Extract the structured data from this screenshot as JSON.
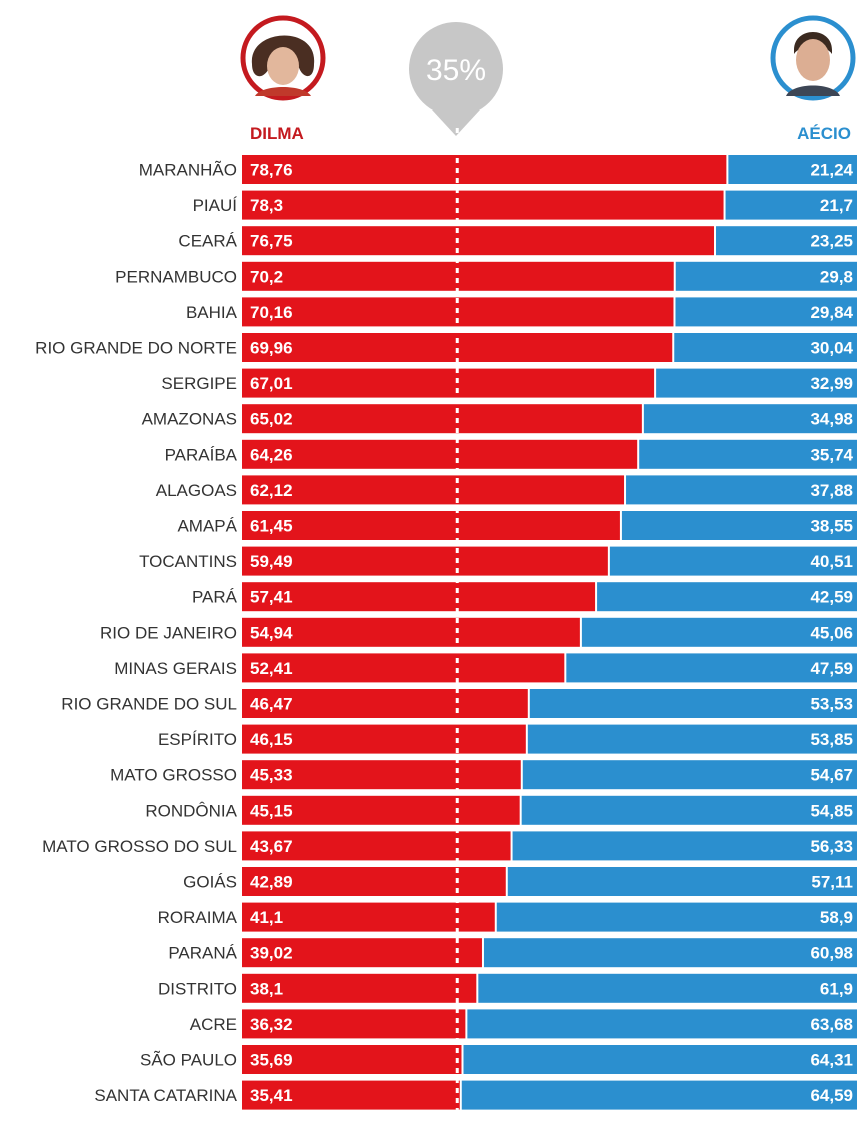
{
  "colors": {
    "dilma": "#e3141b",
    "aecio": "#2b8fcf",
    "marker": "#c7c7c7",
    "state_text": "#333333"
  },
  "candidates": {
    "left": {
      "name": "DILMA",
      "photo_icon": "dilma-portrait-icon"
    },
    "right": {
      "name": "AÉCIO",
      "photo_icon": "aecio-portrait-icon"
    }
  },
  "chart_data": {
    "type": "bar",
    "orientation": "horizontal-stacked",
    "marker": {
      "value": 35,
      "label": "35%"
    },
    "xlim": [
      0,
      100
    ],
    "categories": [
      "MARANHÃO",
      "PIAUÍ",
      "CEARÁ",
      "PERNAMBUCO",
      "BAHIA",
      "RIO GRANDE DO NORTE",
      "SERGIPE",
      "AMAZONAS",
      "PARAÍBA",
      "ALAGOAS",
      "AMAPÁ",
      "TOCANTINS",
      "PARÁ",
      "RIO DE JANEIRO",
      "MINAS GERAIS",
      "RIO GRANDE DO SUL",
      "ESPÍRITO",
      "MATO GROSSO",
      "RONDÔNIA",
      "MATO GROSSO DO SUL",
      "GOIÁS",
      "RORAIMA",
      "PARANÁ",
      "DISTRITO",
      "ACRE",
      "SÃO PAULO",
      "SANTA CATARINA"
    ],
    "series": [
      {
        "name": "DILMA",
        "values": [
          78.76,
          78.3,
          76.75,
          70.2,
          70.16,
          69.96,
          67.01,
          65.02,
          64.26,
          62.12,
          61.45,
          59.49,
          57.41,
          54.94,
          52.41,
          46.47,
          46.15,
          45.33,
          45.15,
          43.67,
          42.89,
          41.1,
          39.02,
          38.1,
          36.32,
          35.69,
          35.41
        ],
        "labels": [
          "78,76",
          "78,3",
          "76,75",
          "70,2",
          "70,16",
          "69,96",
          "67,01",
          "65,02",
          "64,26",
          "62,12",
          "61,45",
          "59,49",
          "57,41",
          "54,94",
          "52,41",
          "46,47",
          "46,15",
          "45,33",
          "45,15",
          "43,67",
          "42,89",
          "41,1",
          "39,02",
          "38,1",
          "36,32",
          "35,69",
          "35,41"
        ]
      },
      {
        "name": "AÉCIO",
        "values": [
          21.24,
          21.7,
          23.25,
          29.8,
          29.84,
          30.04,
          32.99,
          34.98,
          35.74,
          37.88,
          38.55,
          40.51,
          42.59,
          45.06,
          47.59,
          53.53,
          53.85,
          54.67,
          54.85,
          56.33,
          57.11,
          58.9,
          60.98,
          61.9,
          63.68,
          64.31,
          64.59
        ],
        "labels": [
          "21,24",
          "21,7",
          "23,25",
          "29,8",
          "29,84",
          "30,04",
          "32,99",
          "34,98",
          "35,74",
          "37,88",
          "38,55",
          "40,51",
          "42,59",
          "45,06",
          "47,59",
          "53,53",
          "53,85",
          "54,67",
          "54,85",
          "56,33",
          "57,11",
          "58,9",
          "60,98",
          "61,9",
          "63,68",
          "64,31",
          "64,59"
        ]
      }
    ]
  }
}
